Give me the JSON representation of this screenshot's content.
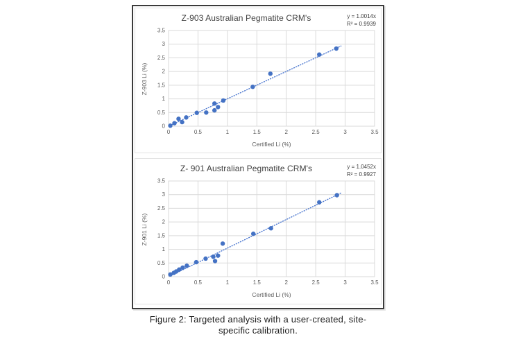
{
  "caption": {
    "line1": "Figure 2: Targeted analysis with a user-created, site-",
    "line2": "specific calibration."
  },
  "colors": {
    "marker": "#4472C4",
    "trendline": "#4E79D0",
    "gridline": "#D9D9D9",
    "tick_text": "#595959",
    "title_text": "#404040",
    "frame_border": "#3B3B3B"
  },
  "chart_data": [
    {
      "type": "scatter",
      "title": "Z-903 Australian Pegmatite CRM's",
      "equation": "y = 1.0014x",
      "r_squared": "R² = 0.9939",
      "xlabel": "Certified Li (%)",
      "ylabel": "Z-903 Li (%)",
      "xlim": [
        0,
        3.5
      ],
      "ylim": [
        0,
        3.5
      ],
      "xticks": [
        "0",
        "0.5",
        "1",
        "1.5",
        "2",
        "2.5",
        "3",
        "3.5"
      ],
      "yticks": [
        "0",
        "0.5",
        "1",
        "1.5",
        "2",
        "2.5",
        "3",
        "3.5"
      ],
      "grid": true,
      "legend": "none",
      "marker_color": "#4472C4",
      "trendline": {
        "style": "dotted",
        "slope": 1.0014,
        "x_start": 0.02,
        "x_end": 2.93
      },
      "points": [
        [
          0.03,
          0.02
        ],
        [
          0.1,
          0.11
        ],
        [
          0.17,
          0.27
        ],
        [
          0.23,
          0.15
        ],
        [
          0.3,
          0.32
        ],
        [
          0.48,
          0.49
        ],
        [
          0.64,
          0.5
        ],
        [
          0.78,
          0.58
        ],
        [
          0.78,
          0.83
        ],
        [
          0.84,
          0.7
        ],
        [
          0.93,
          0.94
        ],
        [
          1.43,
          1.44
        ],
        [
          1.73,
          1.92
        ],
        [
          2.56,
          2.62
        ],
        [
          2.85,
          2.84
        ]
      ]
    },
    {
      "type": "scatter",
      "title": "Z- 901 Australian Pegmatite CRM's",
      "equation": "y = 1.0452x",
      "r_squared": "R² = 0.9927",
      "xlabel": "Certified Li (%)",
      "ylabel": "Z-901 Li (%)",
      "xlim": [
        0,
        3.5
      ],
      "ylim": [
        0,
        3.5
      ],
      "xticks": [
        "0",
        "0.5",
        "1",
        "1.5",
        "2",
        "2.5",
        "3",
        "3.5"
      ],
      "yticks": [
        "0",
        "0.5",
        "1",
        "1.5",
        "2",
        "2.5",
        "3",
        "3.5"
      ],
      "grid": true,
      "legend": "none",
      "marker_color": "#4472C4",
      "trendline": {
        "style": "dotted",
        "slope": 1.0452,
        "x_start": 0.03,
        "x_end": 2.93
      },
      "points": [
        [
          0.03,
          0.08
        ],
        [
          0.09,
          0.14
        ],
        [
          0.13,
          0.19
        ],
        [
          0.18,
          0.26
        ],
        [
          0.24,
          0.33
        ],
        [
          0.31,
          0.4
        ],
        [
          0.47,
          0.53
        ],
        [
          0.63,
          0.66
        ],
        [
          0.76,
          0.73
        ],
        [
          0.79,
          0.57
        ],
        [
          0.84,
          0.77
        ],
        [
          0.92,
          1.21
        ],
        [
          1.44,
          1.57
        ],
        [
          1.74,
          1.77
        ],
        [
          2.56,
          2.72
        ],
        [
          2.86,
          2.98
        ]
      ]
    }
  ]
}
